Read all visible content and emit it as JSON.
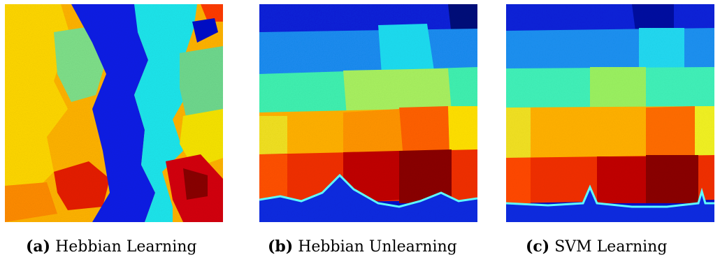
{
  "figure": {
    "panels": [
      {
        "tag": "(a)",
        "title": "Hebbian Learning",
        "description": "colormap of a noisy Hebbian-learning state: vertical stripes of blue and cyan at center with yellow, green, and red regions on the sides"
      },
      {
        "tag": "(b)",
        "title": "Hebbian Unlearning",
        "description": "colormap with horizontal bands from dark blue at top through cyan, green, yellow, orange to dark red, and a blue strip at the bottom"
      },
      {
        "tag": "(c)",
        "title": "SVM Learning",
        "description": "colormap with clean horizontal bands from dark blue at top through cyan, green, yellow, orange to dark red, and a blue strip at the bottom"
      }
    ],
    "colormap": [
      "#00008f",
      "#0000ff",
      "#0080ff",
      "#00ffff",
      "#80ff80",
      "#ffff00",
      "#ff8000",
      "#ff0000",
      "#800000"
    ]
  }
}
